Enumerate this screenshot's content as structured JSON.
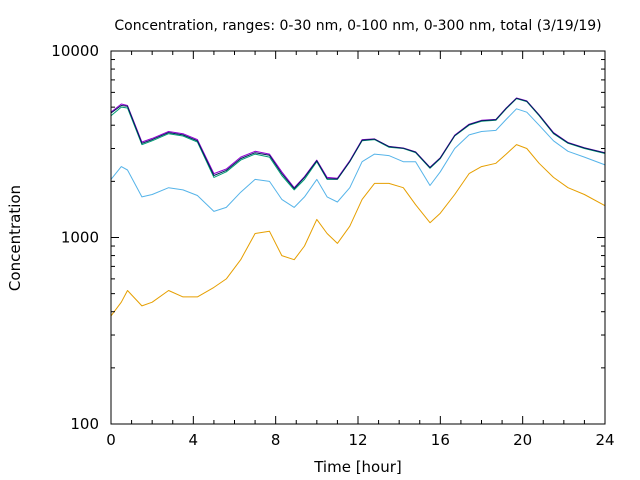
{
  "chart_data": {
    "type": "line",
    "title": "Concentration, ranges: 0-30 nm, 0-100 nm, 0-300 nm, total (3/19/19)",
    "xlabel": "Time [hour]",
    "ylabel": "Concentration",
    "xlim": [
      0,
      24
    ],
    "ylim": [
      100,
      10000
    ],
    "yscale": "log",
    "xticks": [
      0,
      4,
      8,
      12,
      16,
      20,
      24
    ],
    "xtick_labels": [
      "0",
      "4",
      "8",
      "12",
      "16",
      "20",
      "24"
    ],
    "yticks": [
      100,
      1000,
      10000
    ],
    "ytick_labels": [
      "100",
      "1000",
      "10000"
    ],
    "grid": false,
    "legend": "none",
    "x": [
      0,
      0.5,
      0.8,
      1.5,
      2,
      2.8,
      3.5,
      4.2,
      5,
      5.6,
      6.3,
      7,
      7.7,
      8.3,
      8.9,
      9.4,
      10,
      10.5,
      11,
      11.6,
      12.2,
      12.8,
      13.5,
      14.2,
      14.8,
      15.5,
      16,
      16.7,
      17.4,
      18,
      18.7,
      19.2,
      19.7,
      20.2,
      20.8,
      21.5,
      22.2,
      23,
      24
    ],
    "series": [
      {
        "color": "#e69f00",
        "values": [
          380,
          450,
          520,
          430,
          450,
          520,
          480,
          480,
          540,
          600,
          760,
          1050,
          1080,
          800,
          760,
          900,
          1250,
          1050,
          930,
          1150,
          1600,
          1950,
          1950,
          1850,
          1500,
          1200,
          1350,
          1700,
          2200,
          2400,
          2500,
          2800,
          3150,
          3000,
          2500,
          2100,
          1850,
          1700,
          1480
        ]
      },
      {
        "color": "#56b4e9",
        "values": [
          2050,
          2400,
          2300,
          1650,
          1700,
          1850,
          1800,
          1680,
          1380,
          1450,
          1750,
          2050,
          2000,
          1600,
          1450,
          1650,
          2050,
          1650,
          1550,
          1850,
          2550,
          2800,
          2750,
          2550,
          2550,
          1900,
          2250,
          3000,
          3550,
          3700,
          3750,
          4300,
          4900,
          4700,
          4000,
          3300,
          2900,
          2700,
          2450
        ]
      },
      {
        "color": "#009e73",
        "values": [
          4500,
          5000,
          4950,
          3150,
          3300,
          3600,
          3500,
          3250,
          2100,
          2250,
          2600,
          2800,
          2700,
          2150,
          1800,
          2050,
          2550,
          2050,
          2050,
          2550,
          3300,
          3350,
          3050,
          3000,
          2850,
          2350,
          2650,
          3500,
          4000,
          4200,
          4250,
          4900,
          5550,
          5350,
          4500,
          3600,
          3200,
          3000,
          2820
        ]
      },
      {
        "color": "#9400d3",
        "values": [
          4700,
          5200,
          5100,
          3250,
          3400,
          3700,
          3600,
          3350,
          2200,
          2330,
          2700,
          2900,
          2800,
          2250,
          1850,
          2120,
          2600,
          2100,
          2080,
          2580,
          3350,
          3380,
          3080,
          3020,
          2880,
          2380,
          2680,
          3540,
          4050,
          4250,
          4300,
          4950,
          5600,
          5400,
          4550,
          3650,
          3230,
          3030,
          2850
        ]
      },
      {
        "color": "#00205b",
        "values": [
          4650,
          5100,
          5050,
          3200,
          3350,
          3650,
          3550,
          3300,
          2150,
          2290,
          2650,
          2850,
          2760,
          2200,
          1830,
          2100,
          2580,
          2070,
          2060,
          2560,
          3320,
          3370,
          3070,
          3010,
          2870,
          2370,
          2670,
          3520,
          4030,
          4230,
          4280,
          4930,
          5580,
          5380,
          4530,
          3630,
          3220,
          3020,
          2840
        ]
      }
    ]
  }
}
